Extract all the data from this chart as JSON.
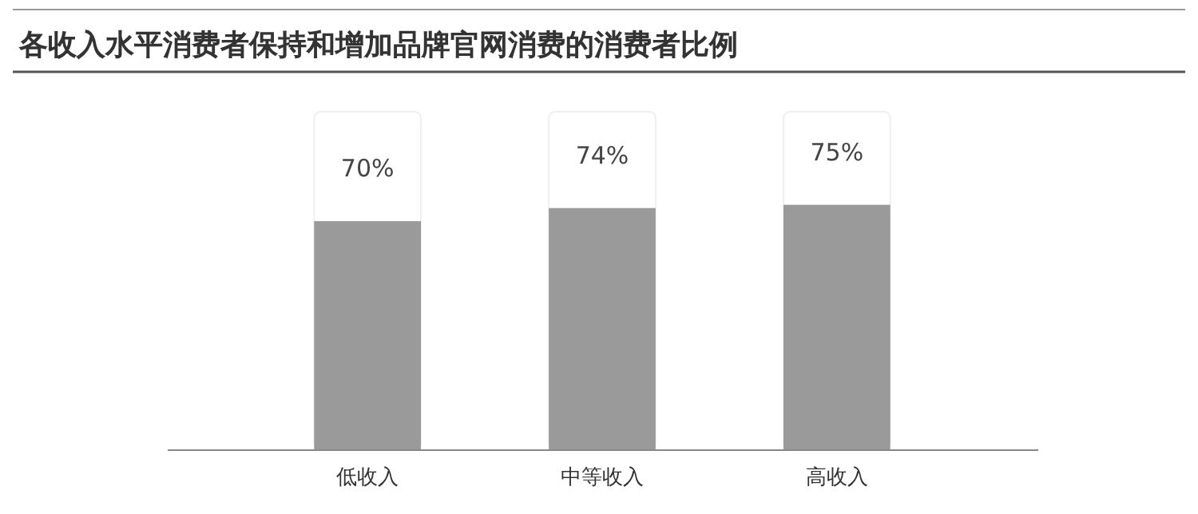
{
  "chart_data": {
    "type": "bar",
    "title": "各收入水平消费者保持和增加品牌官网消费的消费者比例",
    "categories": [
      "低收入",
      "中等收入",
      "高收入"
    ],
    "values": [
      70,
      74,
      75
    ],
    "color": "#9a9a9a",
    "data_labels": true,
    "value_labels": [
      "70%",
      "74%",
      "75%"
    ]
  }
}
